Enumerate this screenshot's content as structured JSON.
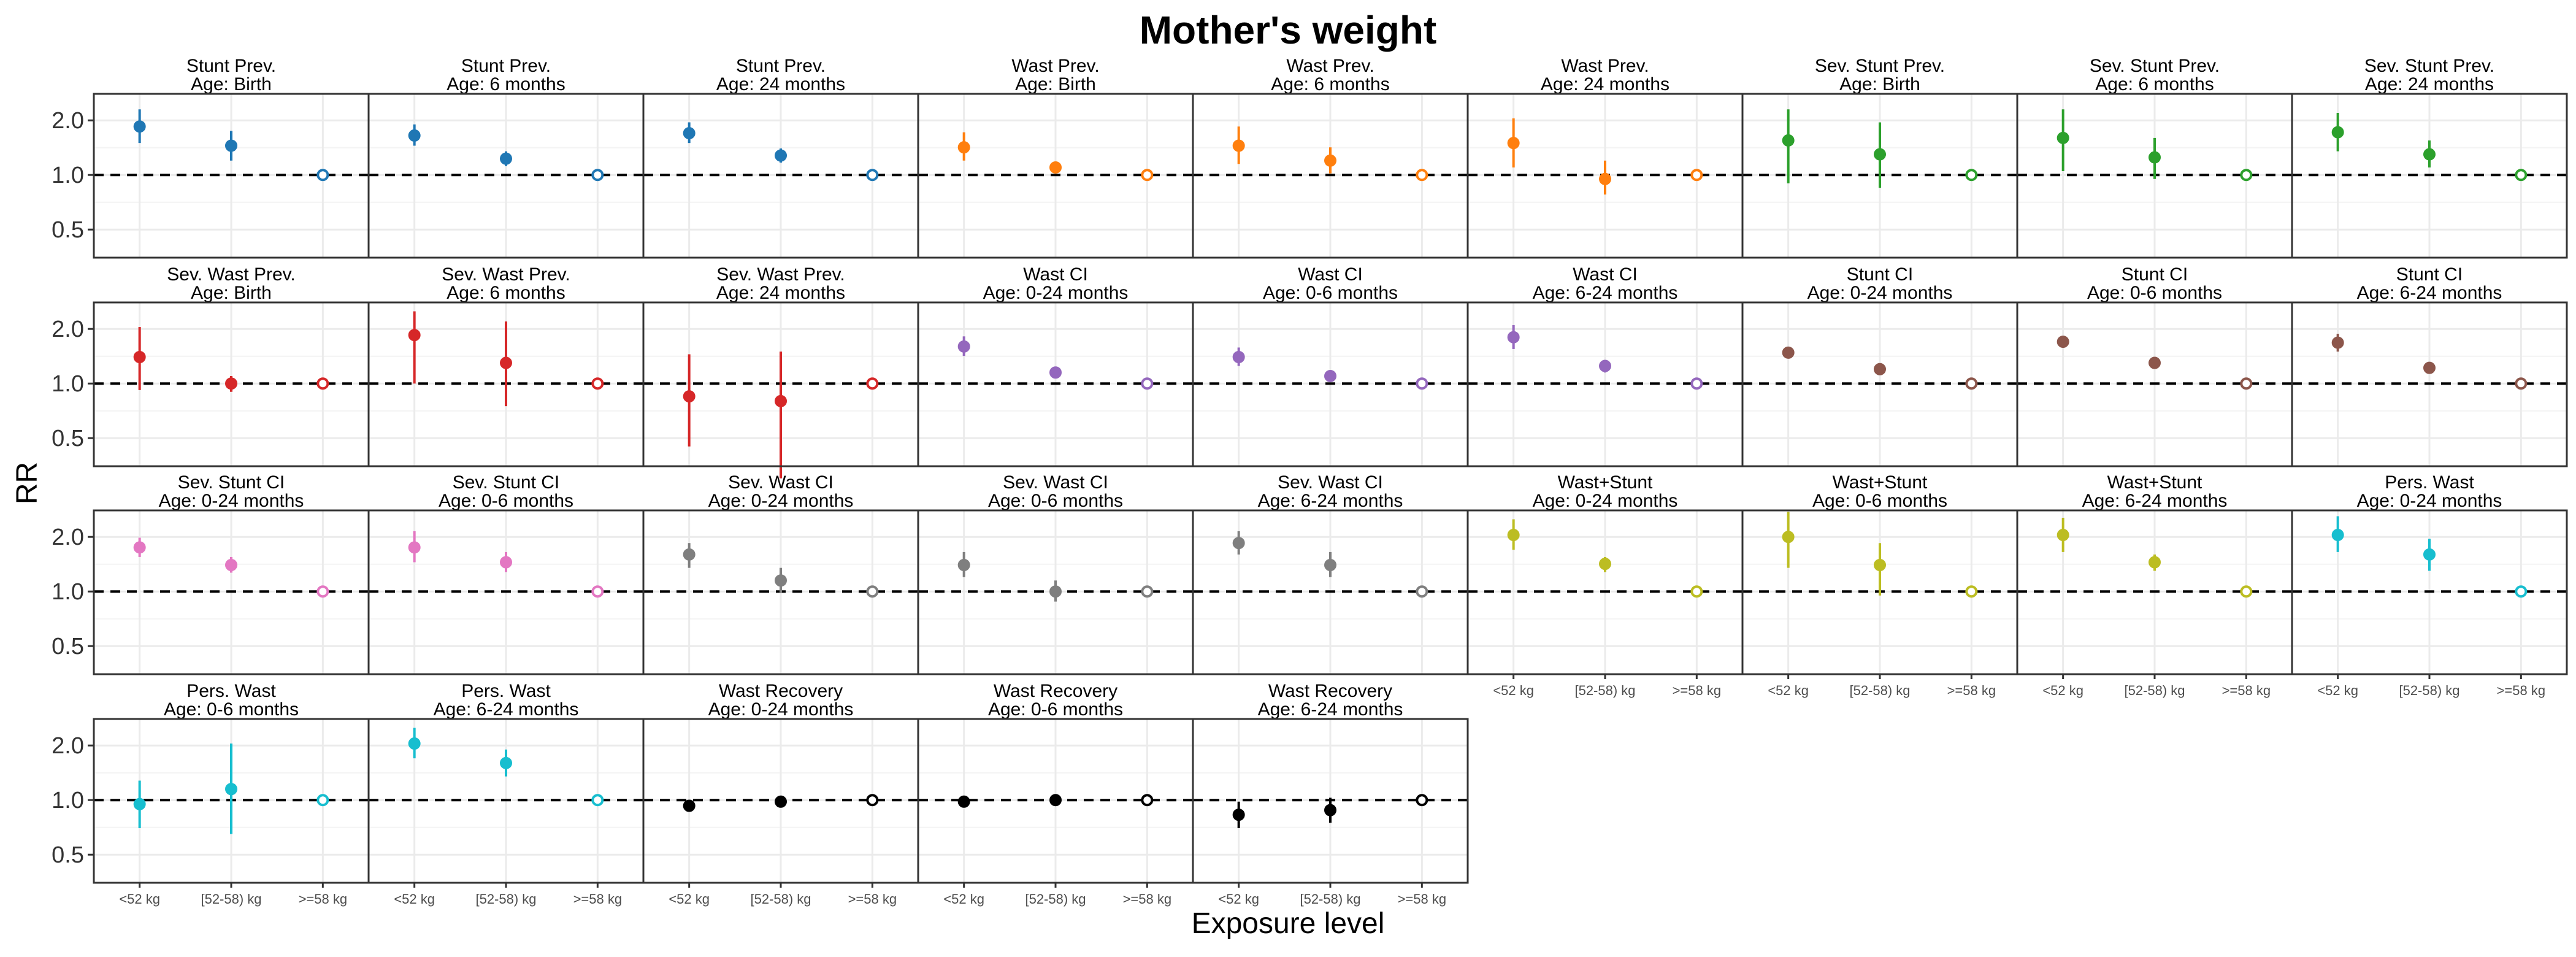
{
  "chart_data": {
    "type": "scatter",
    "title": "Mother's weight",
    "xlabel": "Exposure level",
    "ylabel": "RR",
    "y_scale": "log",
    "ylim": [
      0.35,
      2.8
    ],
    "y_ticks": [
      "0.5",
      "1.0",
      "2.0"
    ],
    "categories": [
      "<52 kg",
      "[52-58) kg",
      ">=58 kg"
    ],
    "reference_line": 1.0,
    "grid": true,
    "panels": [
      {
        "title1": "Stunt Prev.",
        "title2": "Age: Birth",
        "color": "#1f77b4",
        "rr": [
          1.85,
          1.45,
          1.0
        ],
        "lo": [
          1.5,
          1.2,
          1.0
        ],
        "hi": [
          2.3,
          1.75,
          1.0
        ]
      },
      {
        "title1": "Stunt Prev.",
        "title2": "Age: 6 months",
        "color": "#1f77b4",
        "rr": [
          1.65,
          1.23,
          1.0
        ],
        "lo": [
          1.45,
          1.12,
          1.0
        ],
        "hi": [
          1.9,
          1.35,
          1.0
        ]
      },
      {
        "title1": "Stunt Prev.",
        "title2": "Age: 24 months",
        "color": "#1f77b4",
        "rr": [
          1.7,
          1.28,
          1.0
        ],
        "lo": [
          1.5,
          1.17,
          1.0
        ],
        "hi": [
          1.95,
          1.4,
          1.0
        ]
      },
      {
        "title1": "Wast Prev.",
        "title2": "Age: Birth",
        "color": "#ff7f0e",
        "rr": [
          1.42,
          1.1,
          1.0
        ],
        "lo": [
          1.2,
          1.05,
          1.0
        ],
        "hi": [
          1.72,
          1.16,
          1.0
        ]
      },
      {
        "title1": "Wast Prev.",
        "title2": "Age: 6 months",
        "color": "#ff7f0e",
        "rr": [
          1.45,
          1.2,
          1.0
        ],
        "lo": [
          1.15,
          1.02,
          1.0
        ],
        "hi": [
          1.85,
          1.42,
          1.0
        ]
      },
      {
        "title1": "Wast Prev.",
        "title2": "Age: 24 months",
        "color": "#ff7f0e",
        "rr": [
          1.5,
          0.95,
          1.0
        ],
        "lo": [
          1.1,
          0.78,
          1.0
        ],
        "hi": [
          2.05,
          1.2,
          1.0
        ]
      },
      {
        "title1": "Sev. Stunt Prev.",
        "title2": "Age: Birth",
        "color": "#2ca02c",
        "rr": [
          1.55,
          1.3,
          1.0
        ],
        "lo": [
          0.9,
          0.85,
          1.0
        ],
        "hi": [
          2.3,
          1.95,
          1.0
        ]
      },
      {
        "title1": "Sev. Stunt Prev.",
        "title2": "Age: 6 months",
        "color": "#2ca02c",
        "rr": [
          1.6,
          1.25,
          1.0
        ],
        "lo": [
          1.05,
          0.95,
          1.0
        ],
        "hi": [
          2.3,
          1.6,
          1.0
        ]
      },
      {
        "title1": "Sev. Stunt Prev.",
        "title2": "Age: 24 months",
        "color": "#2ca02c",
        "rr": [
          1.72,
          1.3,
          1.0
        ],
        "lo": [
          1.35,
          1.1,
          1.0
        ],
        "hi": [
          2.2,
          1.55,
          1.0
        ]
      },
      {
        "title1": "Sev. Wast Prev.",
        "title2": "Age: Birth",
        "color": "#d62728",
        "rr": [
          1.4,
          1.0,
          1.0
        ],
        "lo": [
          0.92,
          0.9,
          1.0
        ],
        "hi": [
          2.05,
          1.1,
          1.0
        ]
      },
      {
        "title1": "Sev. Wast Prev.",
        "title2": "Age: 6 months",
        "color": "#d62728",
        "rr": [
          1.85,
          1.3,
          1.0
        ],
        "lo": [
          1.0,
          0.75,
          1.0
        ],
        "hi": [
          2.5,
          2.2,
          1.0
        ]
      },
      {
        "title1": "Sev. Wast Prev.",
        "title2": "Age: 24 months",
        "color": "#d62728",
        "rr": [
          0.85,
          0.8,
          1.0
        ],
        "lo": [
          0.45,
          0.3,
          1.0
        ],
        "hi": [
          1.45,
          1.5,
          1.0
        ]
      },
      {
        "title1": "Wast CI",
        "title2": "Age: 0-24 months",
        "color": "#9467bd",
        "rr": [
          1.6,
          1.15,
          1.0
        ],
        "lo": [
          1.42,
          1.08,
          1.0
        ],
        "hi": [
          1.82,
          1.22,
          1.0
        ]
      },
      {
        "title1": "Wast CI",
        "title2": "Age: 0-6 months",
        "color": "#9467bd",
        "rr": [
          1.4,
          1.1,
          1.0
        ],
        "lo": [
          1.25,
          1.04,
          1.0
        ],
        "hi": [
          1.58,
          1.16,
          1.0
        ]
      },
      {
        "title1": "Wast CI",
        "title2": "Age: 6-24 months",
        "color": "#9467bd",
        "rr": [
          1.8,
          1.25,
          1.0
        ],
        "lo": [
          1.55,
          1.15,
          1.0
        ],
        "hi": [
          2.1,
          1.35,
          1.0
        ]
      },
      {
        "title1": "Stunt CI",
        "title2": "Age: 0-24 months",
        "color": "#8c564b",
        "rr": [
          1.48,
          1.2,
          1.0
        ],
        "lo": [
          1.4,
          1.14,
          1.0
        ],
        "hi": [
          1.56,
          1.26,
          1.0
        ]
      },
      {
        "title1": "Stunt CI",
        "title2": "Age: 0-6 months",
        "color": "#8c564b",
        "rr": [
          1.7,
          1.3,
          1.0
        ],
        "lo": [
          1.58,
          1.22,
          1.0
        ],
        "hi": [
          1.82,
          1.38,
          1.0
        ]
      },
      {
        "title1": "Stunt CI",
        "title2": "Age: 6-24 months",
        "color": "#8c564b",
        "rr": [
          1.68,
          1.22,
          1.0
        ],
        "lo": [
          1.5,
          1.14,
          1.0
        ],
        "hi": [
          1.88,
          1.3,
          1.0
        ]
      },
      {
        "title1": "Sev. Stunt CI",
        "title2": "Age: 0-24 months",
        "color": "#e377c2",
        "rr": [
          1.75,
          1.4,
          1.0
        ],
        "lo": [
          1.55,
          1.27,
          1.0
        ],
        "hi": [
          1.98,
          1.55,
          1.0
        ]
      },
      {
        "title1": "Sev. Stunt CI",
        "title2": "Age: 0-6 months",
        "color": "#e377c2",
        "rr": [
          1.75,
          1.45,
          1.0
        ],
        "lo": [
          1.45,
          1.28,
          1.0
        ],
        "hi": [
          2.15,
          1.65,
          1.0
        ]
      },
      {
        "title1": "Sev. Wast CI",
        "title2": "Age: 0-24 months",
        "color": "#7f7f7f",
        "rr": [
          1.6,
          1.15,
          1.0
        ],
        "lo": [
          1.35,
          0.98,
          1.0
        ],
        "hi": [
          1.85,
          1.35,
          1.0
        ]
      },
      {
        "title1": "Sev. Wast CI",
        "title2": "Age: 0-6 months",
        "color": "#7f7f7f",
        "rr": [
          1.4,
          1.0,
          1.0
        ],
        "lo": [
          1.2,
          0.88,
          1.0
        ],
        "hi": [
          1.65,
          1.15,
          1.0
        ]
      },
      {
        "title1": "Sev. Wast CI",
        "title2": "Age: 6-24 months",
        "color": "#7f7f7f",
        "rr": [
          1.85,
          1.4,
          1.0
        ],
        "lo": [
          1.6,
          1.2,
          1.0
        ],
        "hi": [
          2.15,
          1.65,
          1.0
        ]
      },
      {
        "title1": "Wast+Stunt",
        "title2": "Age: 0-24 months",
        "color": "#bcbd22",
        "rr": [
          2.05,
          1.42,
          1.0
        ],
        "lo": [
          1.7,
          1.28,
          1.0
        ],
        "hi": [
          2.5,
          1.55,
          1.0
        ]
      },
      {
        "title1": "Wast+Stunt",
        "title2": "Age: 0-6 months",
        "color": "#bcbd22",
        "rr": [
          2.0,
          1.4,
          1.0
        ],
        "lo": [
          1.35,
          0.95,
          1.0
        ],
        "hi": [
          2.75,
          1.85,
          1.0
        ]
      },
      {
        "title1": "Wast+Stunt",
        "title2": "Age: 6-24 months",
        "color": "#bcbd22",
        "rr": [
          2.05,
          1.45,
          1.0
        ],
        "lo": [
          1.65,
          1.3,
          1.0
        ],
        "hi": [
          2.55,
          1.6,
          1.0
        ]
      },
      {
        "title1": "Pers. Wast",
        "title2": "Age: 0-24 months",
        "color": "#17becf",
        "rr": [
          2.05,
          1.6,
          1.0
        ],
        "lo": [
          1.65,
          1.3,
          1.0
        ],
        "hi": [
          2.6,
          1.95,
          1.0
        ]
      },
      {
        "title1": "Pers. Wast",
        "title2": "Age: 0-6 months",
        "color": "#17becf",
        "rr": [
          0.95,
          1.15,
          1.0
        ],
        "lo": [
          0.7,
          0.65,
          1.0
        ],
        "hi": [
          1.28,
          2.05,
          1.0
        ]
      },
      {
        "title1": "Pers. Wast",
        "title2": "Age: 6-24 months",
        "color": "#17becf",
        "rr": [
          2.05,
          1.6,
          1.0
        ],
        "lo": [
          1.7,
          1.35,
          1.0
        ],
        "hi": [
          2.5,
          1.9,
          1.0
        ]
      },
      {
        "title1": "Wast Recovery",
        "title2": "Age: 0-24 months",
        "color": "#000000",
        "rr": [
          0.93,
          0.98,
          1.0
        ],
        "lo": [
          0.9,
          0.95,
          1.0
        ],
        "hi": [
          0.96,
          1.01,
          1.0
        ]
      },
      {
        "title1": "Wast Recovery",
        "title2": "Age: 0-6 months",
        "color": "#000000",
        "rr": [
          0.98,
          1.0,
          1.0
        ],
        "lo": [
          0.95,
          0.98,
          1.0
        ],
        "hi": [
          1.01,
          1.02,
          1.0
        ]
      },
      {
        "title1": "Wast Recovery",
        "title2": "Age: 6-24 months",
        "color": "#000000",
        "rr": [
          0.83,
          0.88,
          1.0
        ],
        "lo": [
          0.7,
          0.75,
          1.0
        ],
        "hi": [
          0.98,
          1.03,
          1.0
        ]
      }
    ]
  }
}
